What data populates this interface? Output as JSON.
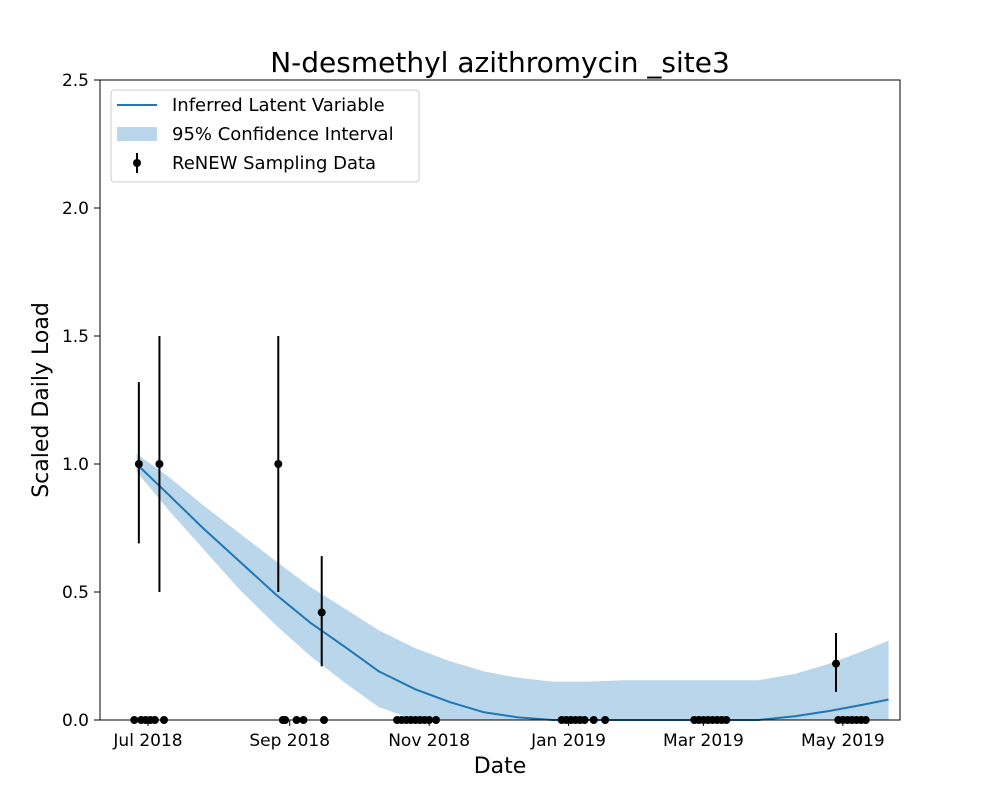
{
  "chart_data": {
    "type": "line",
    "title": "N-desmethyl azithromycin _site3",
    "xlabel": "Date",
    "ylabel": "Scaled Daily Load",
    "ylim": [
      0,
      2.5
    ],
    "xlim": [
      "2018-06-10",
      "2019-05-26"
    ],
    "x_ticks": [
      {
        "date": "2018-07-01",
        "label": "Jul 2018"
      },
      {
        "date": "2018-09-01",
        "label": "Sep 2018"
      },
      {
        "date": "2018-11-01",
        "label": "Nov 2018"
      },
      {
        "date": "2019-01-01",
        "label": "Jan 2019"
      },
      {
        "date": "2019-03-01",
        "label": "Mar 2019"
      },
      {
        "date": "2019-05-01",
        "label": "May 2019"
      }
    ],
    "y_ticks": [
      0.0,
      0.5,
      1.0,
      1.5,
      2.0,
      2.5
    ],
    "y_tick_labels": [
      "0.0",
      "0.5",
      "1.0",
      "1.5",
      "2.0",
      "2.5"
    ],
    "grid": false,
    "legend": {
      "placement": "top-left",
      "entries": [
        "Inferred Latent Variable",
        "95% Confidence Interval",
        "ReNEW Sampling Data"
      ]
    },
    "colors": {
      "latent": "#1f77b4",
      "ci_fill": "#bad6ea",
      "samples": "#000000"
    },
    "series": [
      {
        "name": "Inferred Latent Variable",
        "kind": "line",
        "x": [
          "2018-06-26",
          "2018-07-10",
          "2018-07-25",
          "2018-08-10",
          "2018-08-26",
          "2018-09-10",
          "2018-09-26",
          "2018-10-10",
          "2018-10-26",
          "2018-11-10",
          "2018-11-25",
          "2018-12-10",
          "2018-12-25",
          "2019-01-10",
          "2019-01-25",
          "2019-02-10",
          "2019-02-25",
          "2019-03-10",
          "2019-03-25",
          "2019-04-10",
          "2019-04-25",
          "2019-05-10",
          "2019-05-21"
        ],
        "y": [
          1.0,
          0.88,
          0.75,
          0.62,
          0.49,
          0.38,
          0.28,
          0.19,
          0.12,
          0.07,
          0.03,
          0.01,
          0.0,
          0.0,
          0.0,
          0.0,
          0.0,
          0.0,
          0.0,
          0.015,
          0.035,
          0.06,
          0.08
        ]
      },
      {
        "name": "95% Confidence Interval",
        "kind": "band",
        "x": [
          "2018-06-26",
          "2018-07-10",
          "2018-07-25",
          "2018-08-10",
          "2018-08-26",
          "2018-09-10",
          "2018-09-26",
          "2018-10-10",
          "2018-10-26",
          "2018-11-10",
          "2018-11-25",
          "2018-12-10",
          "2018-12-25",
          "2019-01-10",
          "2019-01-25",
          "2019-02-10",
          "2019-02-25",
          "2019-03-10",
          "2019-03-25",
          "2019-04-10",
          "2019-04-25",
          "2019-05-10",
          "2019-05-21"
        ],
        "lower": [
          0.97,
          0.82,
          0.67,
          0.51,
          0.37,
          0.25,
          0.14,
          0.05,
          0.0,
          0.0,
          0.0,
          0.0,
          0.0,
          0.0,
          0.0,
          0.0,
          0.0,
          0.0,
          0.0,
          0.0,
          0.0,
          0.0,
          0.0
        ],
        "upper": [
          1.04,
          0.95,
          0.84,
          0.73,
          0.62,
          0.52,
          0.43,
          0.35,
          0.28,
          0.23,
          0.19,
          0.165,
          0.15,
          0.15,
          0.155,
          0.155,
          0.155,
          0.155,
          0.155,
          0.18,
          0.22,
          0.27,
          0.31
        ]
      },
      {
        "name": "ReNEW Sampling Data",
        "kind": "errorbar",
        "points": [
          {
            "date": "2018-06-27",
            "y": 1.0,
            "lo": 0.69,
            "hi": 1.32
          },
          {
            "date": "2018-07-06",
            "y": 1.0,
            "lo": 0.5,
            "hi": 1.5
          },
          {
            "date": "2018-08-27",
            "y": 1.0,
            "lo": 0.5,
            "hi": 1.5
          },
          {
            "date": "2018-09-15",
            "y": 0.42,
            "lo": 0.21,
            "hi": 0.64
          },
          {
            "date": "2019-04-28",
            "y": 0.22,
            "lo": 0.11,
            "hi": 0.34
          }
        ]
      },
      {
        "name": "ReNEW Sampling Data",
        "kind": "zero_points",
        "dates": [
          "2018-06-25",
          "2018-06-28",
          "2018-06-30",
          "2018-07-02",
          "2018-07-04",
          "2018-07-08",
          "2018-08-29",
          "2018-08-30",
          "2018-09-04",
          "2018-09-07",
          "2018-09-16",
          "2018-10-18",
          "2018-10-20",
          "2018-10-22",
          "2018-10-24",
          "2018-10-26",
          "2018-10-28",
          "2018-10-30",
          "2018-11-01",
          "2018-11-04",
          "2018-12-29",
          "2018-12-31",
          "2019-01-02",
          "2019-01-04",
          "2019-01-06",
          "2019-01-08",
          "2019-01-12",
          "2019-01-17",
          "2019-02-25",
          "2019-02-27",
          "2019-03-01",
          "2019-03-03",
          "2019-03-05",
          "2019-03-07",
          "2019-03-09",
          "2019-03-11",
          "2019-04-29",
          "2019-05-01",
          "2019-05-03",
          "2019-05-05",
          "2019-05-07",
          "2019-05-09",
          "2019-05-11"
        ]
      }
    ]
  }
}
